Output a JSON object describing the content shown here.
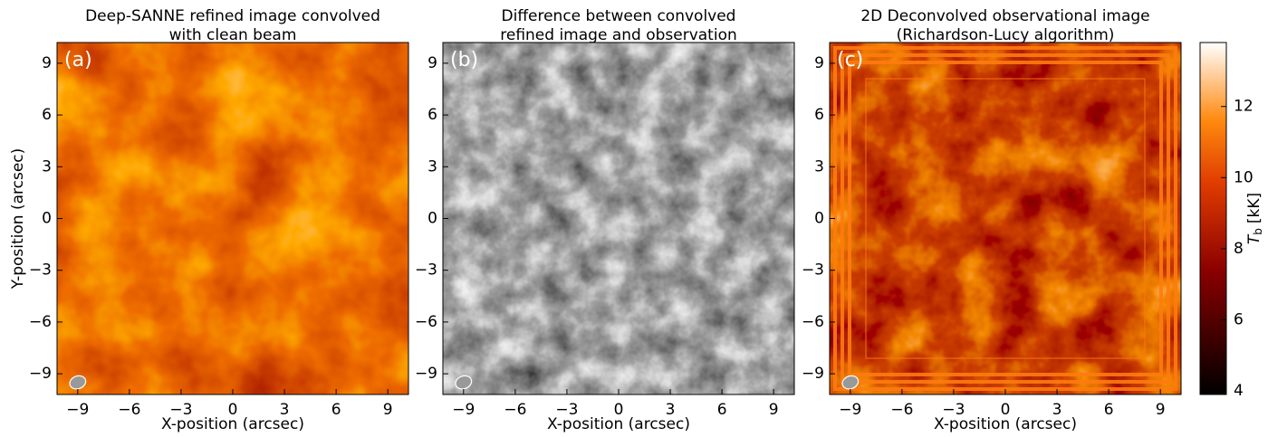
{
  "chart_data": [
    {
      "type": "heatmap",
      "title": [
        "Deep-SANNE refined image convolved",
        "with clean beam"
      ],
      "panel_label": "(a)",
      "xlabel": "X-position (arcsec)",
      "ylabel": "Y-position (arcsec)",
      "xlim": [
        -10.2,
        10.2
      ],
      "ylim": [
        -10.2,
        10.2
      ],
      "xticks": [
        {
          "value": -9,
          "label": "−9"
        },
        {
          "value": -6,
          "label": "−6"
        },
        {
          "value": -3,
          "label": "−3"
        },
        0,
        3,
        6,
        9
      ],
      "yticks": [
        {
          "value": -9,
          "label": "−9"
        },
        {
          "value": -6,
          "label": "−6"
        },
        {
          "value": -3,
          "label": "−3"
        },
        0,
        3,
        6,
        9
      ],
      "colormap": "red"
    },
    {
      "type": "heatmap",
      "title": [
        "Difference between convolved",
        "refined image and observation"
      ],
      "panel_label": "(b)",
      "xlabel": "X-position (arcsec)",
      "xlim": [
        -10.2,
        10.2
      ],
      "ylim": [
        -10.2,
        10.2
      ],
      "xticks": [
        {
          "value": -9,
          "label": "−9"
        },
        {
          "value": -6,
          "label": "−6"
        },
        {
          "value": -3,
          "label": "−3"
        },
        0,
        3,
        6,
        9
      ],
      "yticks": [
        {
          "value": -9,
          "label": "−9"
        },
        {
          "value": -6,
          "label": "−6"
        },
        {
          "value": -3,
          "label": "−3"
        },
        0,
        3,
        6,
        9
      ],
      "colormap": "gray"
    },
    {
      "type": "heatmap",
      "title": [
        "2D Deconvolved observational image",
        "(Richardson-Lucy algorithm)"
      ],
      "panel_label": "(c)",
      "xlabel": "X-position (arcsec)",
      "xlim": [
        -10.2,
        10.2
      ],
      "ylim": [
        -10.2,
        10.2
      ],
      "xticks": [
        {
          "value": -9,
          "label": "−9"
        },
        {
          "value": -6,
          "label": "−6"
        },
        {
          "value": -3,
          "label": "−3"
        },
        0,
        3,
        6,
        9
      ],
      "yticks": [
        {
          "value": -9,
          "label": "−9"
        },
        {
          "value": -6,
          "label": "−6"
        },
        {
          "value": -3,
          "label": "−3"
        },
        0,
        3,
        6,
        9
      ],
      "colormap": "dark",
      "colorbar": {
        "lim": [
          3.9,
          13.8
        ],
        "ticks": [
          4,
          6,
          8,
          10,
          12
        ],
        "label_symbol": "T",
        "label_subscript": "b",
        "label_unit": "[kK]"
      }
    }
  ]
}
